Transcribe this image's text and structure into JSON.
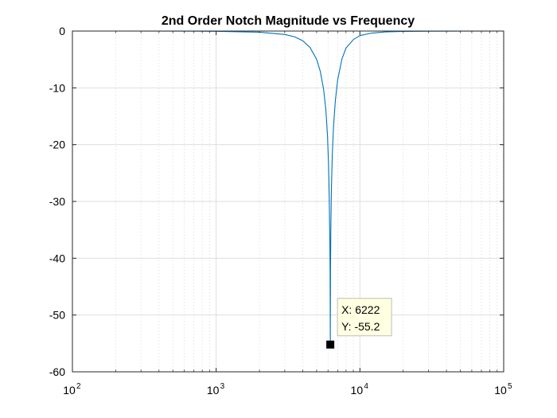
{
  "chart_data": {
    "type": "line",
    "title": "2nd Order Notch Magnitude vs Frequency",
    "xlabel": "",
    "ylabel": "",
    "xscale": "log",
    "xlim": [
      100,
      100000
    ],
    "ylim": [
      -60,
      0
    ],
    "grid": true,
    "minor_grid_x": true,
    "x_ticks": [
      {
        "base": "10",
        "exp": "2",
        "value": 100
      },
      {
        "base": "10",
        "exp": "3",
        "value": 1000
      },
      {
        "base": "10",
        "exp": "4",
        "value": 10000
      },
      {
        "base": "10",
        "exp": "5",
        "value": 100000
      }
    ],
    "y_ticks": [
      {
        "label": "0",
        "value": 0
      },
      {
        "label": "-10",
        "value": -10
      },
      {
        "label": "-20",
        "value": -20
      },
      {
        "label": "-30",
        "value": -30
      },
      {
        "label": "-40",
        "value": -40
      },
      {
        "label": "-50",
        "value": -50
      },
      {
        "label": "-60",
        "value": -60
      }
    ],
    "series": [
      {
        "color": "#0072BD",
        "x": [
          100,
          200,
          500,
          1000,
          2000,
          3000,
          3500,
          4000,
          4500,
          5000,
          5300,
          5600,
          5800,
          5950,
          6050,
          6120,
          6170,
          6200,
          6222,
          6245,
          6275,
          6330,
          6420,
          6550,
          6750,
          7000,
          7500,
          8000,
          9000,
          10000,
          12000,
          15000,
          20000,
          30000,
          50000,
          100000
        ],
        "y": [
          0,
          0,
          -0.01,
          -0.04,
          -0.2,
          -0.6,
          -1.0,
          -1.7,
          -2.9,
          -5.0,
          -7.1,
          -10.4,
          -14.0,
          -18.5,
          -23.5,
          -29.5,
          -35.8,
          -42.0,
          -55.2,
          -41.5,
          -35.0,
          -28.2,
          -22.0,
          -16.8,
          -12.2,
          -8.6,
          -4.9,
          -3.0,
          -1.5,
          -0.8,
          -0.37,
          -0.15,
          -0.07,
          -0.02,
          -0.01,
          0
        ]
      }
    ],
    "datatip": {
      "x": 6222,
      "y": -55.2,
      "x_text": "X: 6222",
      "y_text": "Y: -55.2"
    },
    "colors": {
      "line": "#0072BD",
      "grid": "#DEDEDE",
      "axes": "#262626",
      "tip_bg": "#FFFFE1",
      "tip_border": "#BDBDBD",
      "marker": "#000000"
    }
  }
}
